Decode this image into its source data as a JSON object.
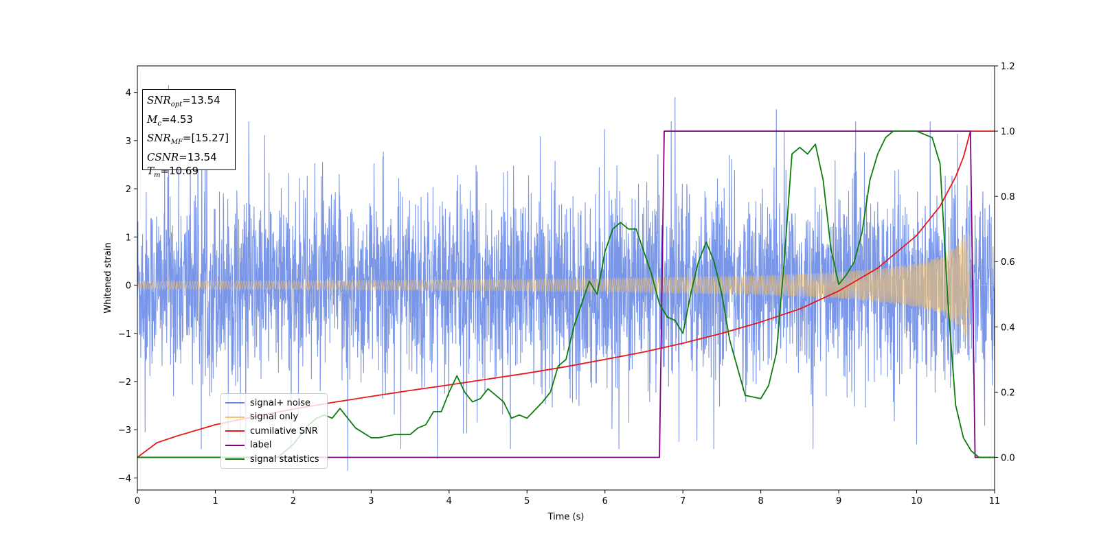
{
  "chart_data": {
    "type": "line",
    "title": "",
    "xlabel": "Time (s)",
    "ylabel": "Whitened strain",
    "ylabel_right": "",
    "xlim": [
      0,
      11
    ],
    "ylim": [
      -4.25,
      4.55
    ],
    "ylim_right": [
      -0.1,
      1.2
    ],
    "x_ticks": [
      "0",
      "1",
      "2",
      "3",
      "4",
      "5",
      "6",
      "7",
      "8",
      "9",
      "10",
      "11"
    ],
    "y_ticks": [
      "−4",
      "−3",
      "−2",
      "−1",
      "0",
      "1",
      "2",
      "3",
      "4"
    ],
    "y_ticks_right": [
      "0.0",
      "0.2",
      "0.4",
      "0.6",
      "0.8",
      "1.0",
      "1.2"
    ],
    "grid": false,
    "legend_position": "lower-left",
    "series": [
      {
        "name": "signal+ noise",
        "color": "#6a8be6",
        "axis": "left",
        "description_values": {
          "baseline_sigma": 1.0,
          "peak_max": 4.2,
          "peak_min": -3.85
        },
        "notable_spikes": [
          [
            0.4,
            4.15
          ],
          [
            0.68,
            3.2
          ],
          [
            1.43,
            3.4
          ],
          [
            6.9,
            3.9
          ],
          [
            8.2,
            3.65
          ],
          [
            8.3,
            3.2
          ],
          [
            2.7,
            -3.85
          ],
          [
            3.85,
            -3.6
          ],
          [
            0.1,
            -3.05
          ],
          [
            6.95,
            -3.25
          ],
          [
            10.0,
            -3.3
          ]
        ]
      },
      {
        "name": "signal only",
        "color": "#f5c26b",
        "axis": "left",
        "amplitude_envelope": [
          [
            0,
            0.08
          ],
          [
            2,
            0.09
          ],
          [
            4,
            0.11
          ],
          [
            6,
            0.14
          ],
          [
            8,
            0.2
          ],
          [
            9,
            0.27
          ],
          [
            9.5,
            0.35
          ],
          [
            10,
            0.45
          ],
          [
            10.3,
            0.6
          ],
          [
            10.5,
            0.8
          ],
          [
            10.62,
            1.05
          ],
          [
            10.69,
            1.3
          ],
          [
            10.72,
            0.0
          ],
          [
            11,
            0.0
          ]
        ]
      },
      {
        "name": "cumilative SNR",
        "color": "#e8171a",
        "axis": "right",
        "x": [
          0,
          0.25,
          0.5,
          1,
          1.5,
          2,
          2.5,
          3,
          3.5,
          4,
          4.5,
          5,
          5.5,
          6,
          6.5,
          7,
          7.5,
          8,
          8.5,
          9,
          9.5,
          10,
          10.3,
          10.5,
          10.6,
          10.69,
          11
        ],
        "y": [
          0.0,
          0.045,
          0.065,
          0.1,
          0.125,
          0.148,
          0.168,
          0.187,
          0.205,
          0.222,
          0.24,
          0.258,
          0.278,
          0.3,
          0.323,
          0.35,
          0.38,
          0.415,
          0.455,
          0.51,
          0.58,
          0.68,
          0.77,
          0.86,
          0.92,
          1.0,
          1.0
        ]
      },
      {
        "name": "label",
        "color": "#800080",
        "axis": "right",
        "x": [
          0,
          6.7,
          6.76,
          10.69,
          10.75,
          11
        ],
        "y": [
          0.0,
          0.0,
          1.0,
          1.0,
          0.0,
          0.0
        ]
      },
      {
        "name": "signal statistics",
        "color": "#0a7d0a",
        "axis": "right",
        "x": [
          0,
          1.8,
          2.0,
          2.1,
          2.2,
          2.3,
          2.4,
          2.5,
          2.6,
          2.7,
          2.8,
          3.0,
          3.1,
          3.3,
          3.5,
          3.6,
          3.7,
          3.8,
          3.9,
          4.0,
          4.1,
          4.2,
          4.3,
          4.4,
          4.5,
          4.6,
          4.7,
          4.8,
          4.9,
          5.0,
          5.2,
          5.3,
          5.4,
          5.5,
          5.6,
          5.7,
          5.8,
          5.9,
          6.0,
          6.1,
          6.2,
          6.3,
          6.4,
          6.5,
          6.6,
          6.7,
          6.8,
          6.9,
          7.0,
          7.1,
          7.2,
          7.3,
          7.4,
          7.5,
          7.6,
          7.8,
          8.0,
          8.1,
          8.2,
          8.3,
          8.4,
          8.5,
          8.6,
          8.7,
          8.8,
          8.9,
          9.0,
          9.1,
          9.2,
          9.3,
          9.4,
          9.5,
          9.6,
          9.7,
          9.8,
          10.0,
          10.2,
          10.3,
          10.4,
          10.5,
          10.6,
          10.7,
          10.8,
          11.0
        ],
        "y": [
          0.0,
          0.0,
          0.04,
          0.07,
          0.1,
          0.12,
          0.13,
          0.12,
          0.15,
          0.12,
          0.09,
          0.06,
          0.06,
          0.07,
          0.07,
          0.09,
          0.1,
          0.14,
          0.14,
          0.2,
          0.25,
          0.2,
          0.17,
          0.18,
          0.21,
          0.19,
          0.17,
          0.12,
          0.13,
          0.12,
          0.17,
          0.2,
          0.28,
          0.3,
          0.4,
          0.47,
          0.54,
          0.5,
          0.63,
          0.7,
          0.72,
          0.7,
          0.7,
          0.63,
          0.56,
          0.47,
          0.43,
          0.42,
          0.38,
          0.5,
          0.6,
          0.66,
          0.6,
          0.5,
          0.36,
          0.19,
          0.18,
          0.22,
          0.32,
          0.6,
          0.93,
          0.95,
          0.93,
          0.96,
          0.85,
          0.64,
          0.53,
          0.56,
          0.6,
          0.69,
          0.85,
          0.93,
          0.98,
          1.0,
          1.0,
          1.0,
          0.98,
          0.9,
          0.48,
          0.16,
          0.06,
          0.02,
          0.0,
          0.0
        ]
      }
    ]
  },
  "info_box": {
    "snr_opt_symbol": "SNR",
    "snr_opt_sub": "opt",
    "snr_opt_value": "=13.54",
    "mc_symbol": "M",
    "mc_sub": "c",
    "mc_value": "=4.53",
    "snr_mf_symbol": "SNR",
    "snr_mf_sub": "MF",
    "snr_mf_value": "=[15.27]",
    "csnr_symbol": "CSNR",
    "csnr_value": "=13.54",
    "tm_symbol": "T",
    "tm_sub": "m",
    "tm_value": "=10.69"
  },
  "legend": {
    "items": [
      {
        "label": "signal+ noise",
        "color": "#6a8be6"
      },
      {
        "label": "signal only",
        "color": "#f5c26b"
      },
      {
        "label": "cumilative SNR",
        "color": "#e8171a"
      },
      {
        "label": "label",
        "color": "#800080"
      },
      {
        "label": "signal statistics",
        "color": "#0a7d0a"
      }
    ]
  }
}
